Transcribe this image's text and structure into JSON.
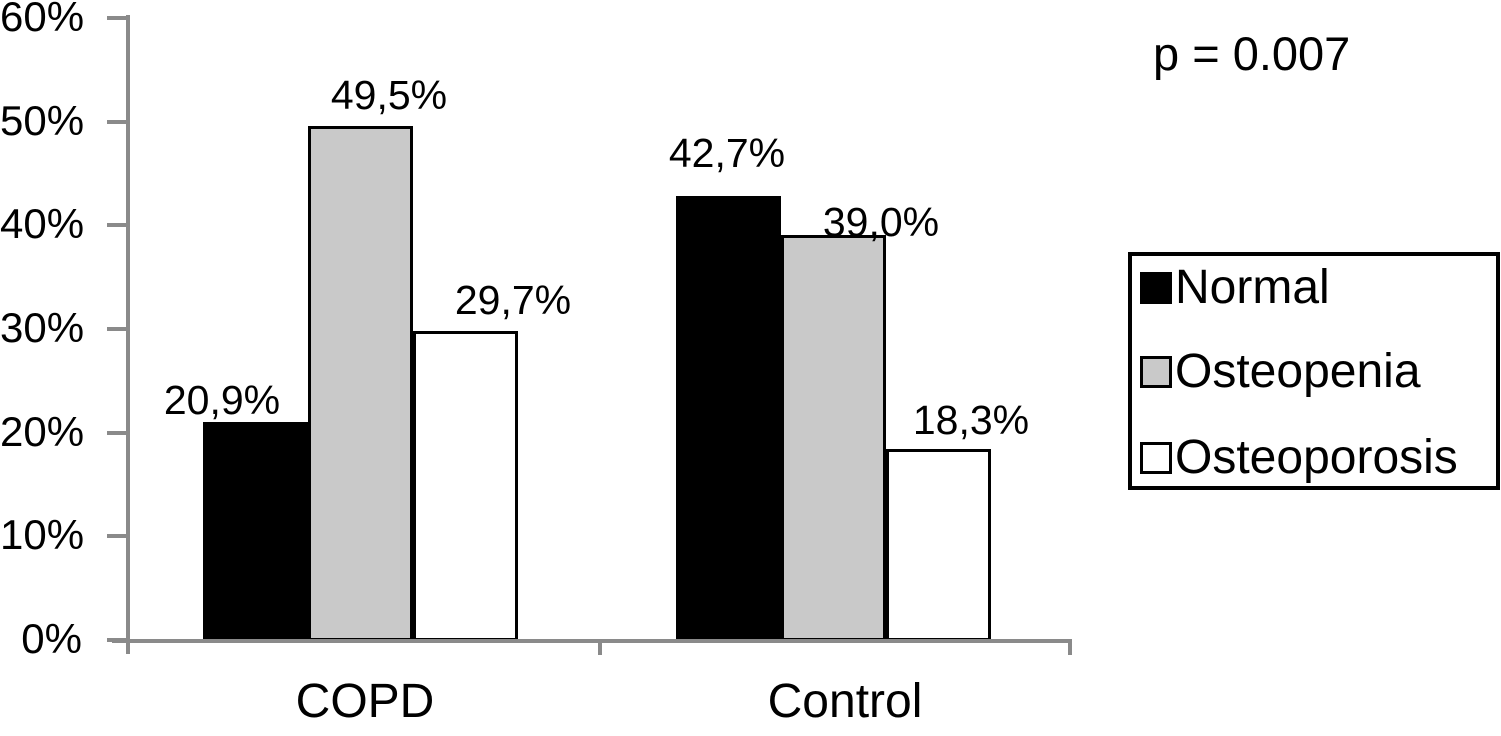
{
  "chart_data": {
    "type": "bar",
    "categories": [
      "COPD",
      "Control"
    ],
    "series": [
      {
        "name": "Normal",
        "color": "#000000",
        "values": [
          20.9,
          42.7
        ],
        "labels": [
          "20,9%",
          "42,7%"
        ]
      },
      {
        "name": "Osteopenia",
        "color": "#c9c9c9",
        "values": [
          49.5,
          39.0
        ],
        "labels": [
          "49,5%",
          "39,0%"
        ]
      },
      {
        "name": "Osteoporosis",
        "color": "#ffffff",
        "values": [
          29.7,
          18.3
        ],
        "labels": [
          "29,7%",
          "18,3%"
        ]
      }
    ],
    "title": "",
    "xlabel": "",
    "ylabel": "",
    "ylim": [
      0,
      60
    ],
    "yticks": [
      "0%",
      "10%",
      "20%",
      "30%",
      "40%",
      "50%",
      "60%"
    ],
    "ytick_values": [
      0,
      10,
      20,
      30,
      40,
      50,
      60
    ],
    "grid": false,
    "legend_position": "right"
  },
  "annotation": {
    "p_value": "p = 0.007"
  },
  "colors": {
    "axis": "#8a8a8a",
    "bar_border": "#000000",
    "text": "#000000",
    "background": "#ffffff"
  }
}
